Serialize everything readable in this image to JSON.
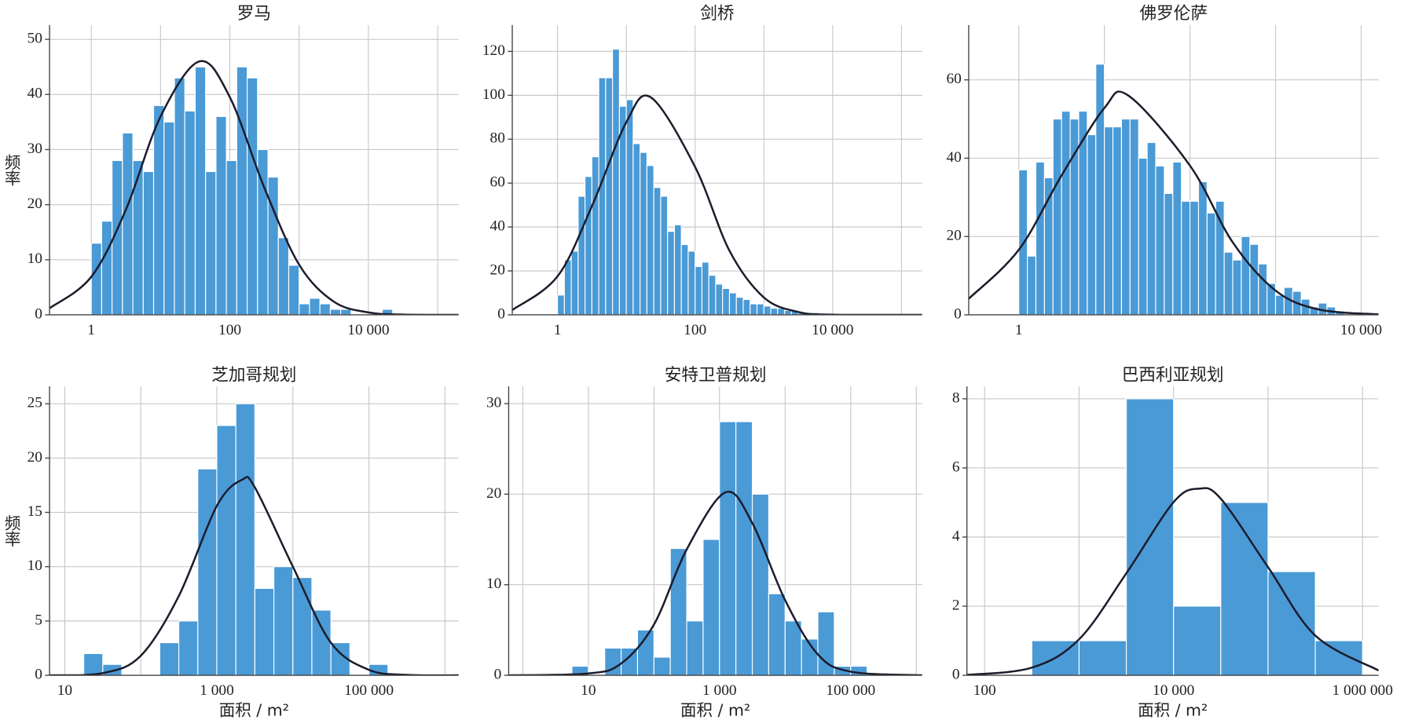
{
  "chart_data": [
    {
      "type": "histogram",
      "title": "罗马",
      "ylabel": "频率",
      "log_x": true,
      "grid": true,
      "color": "#4a9ad6",
      "xlim": [
        0.25,
        200000
      ],
      "xticks": [
        1,
        100,
        {
          "value": 10000,
          "label": "10 000"
        }
      ],
      "xminor": [
        10,
        1000,
        100000
      ],
      "ylim": [
        0,
        52.6
      ],
      "yticks": [
        0,
        10,
        20,
        30,
        40,
        50
      ],
      "bins": [
        1,
        1.413,
        1.995,
        2.818,
        3.981,
        5.623,
        7.943,
        11.22,
        15.85,
        22.39,
        31.62,
        44.67,
        63.1,
        89.13,
        125.9,
        177.8,
        251.2,
        354.8,
        501.2,
        707.9,
        1000,
        1413,
        1995,
        2818,
        3981,
        5623,
        7943,
        11220,
        15850,
        22390
      ],
      "values": [
        13,
        17,
        28,
        33,
        28,
        26,
        38,
        35,
        43,
        37,
        45,
        26,
        36,
        28,
        45,
        43,
        30,
        25,
        14,
        9,
        2,
        3,
        2,
        1,
        1,
        0,
        0,
        0,
        1
      ],
      "curve": {
        "color": "#1c1c2c",
        "x": [
          0.25,
          1,
          3.162,
          10,
          36.31,
          100,
          316.2,
          1000,
          3162,
          10000,
          31620,
          200000
        ],
        "values": [
          1.2,
          6.9,
          19.1,
          36.0,
          46,
          39.5,
          23.0,
          9.1,
          2.4,
          0.44,
          0.05,
          0
        ]
      }
    },
    {
      "type": "histogram",
      "title": "剑桥",
      "log_x": true,
      "grid": true,
      "color": "#4a9ad6",
      "xlim": [
        0.22,
        200000
      ],
      "xticks": [
        1,
        100,
        {
          "value": 10000,
          "label": "10 000"
        }
      ],
      "xminor": [
        10,
        1000,
        100000
      ],
      "ylim": [
        0,
        132
      ],
      "yticks": [
        0,
        20,
        40,
        60,
        80,
        100,
        120
      ],
      "bins": [
        1,
        1.259,
        1.585,
        1.995,
        2.512,
        3.162,
        3.981,
        5.012,
        6.31,
        7.943,
        10,
        12.59,
        15.85,
        19.95,
        25.12,
        31.62,
        39.81,
        50.12,
        63.1,
        79.43,
        100,
        125.9,
        158.5,
        199.5,
        251.2,
        316.2,
        398.1,
        501.2,
        631.0,
        794.3,
        1000,
        1259,
        1585,
        1995,
        2512,
        3162,
        3981,
        5012,
        6310
      ],
      "values": [
        9,
        25,
        29,
        54,
        63,
        72,
        108,
        108,
        121,
        95,
        98,
        78,
        74,
        68,
        58,
        54,
        38,
        41,
        32,
        29,
        22,
        24,
        18,
        14,
        12,
        10,
        8,
        7,
        5,
        5,
        4,
        3,
        3,
        2,
        2,
        1,
        1,
        1
      ],
      "curve": {
        "color": "#1c1c2c",
        "x": [
          0.22,
          1,
          3.162,
          10,
          22.91,
          100,
          316.2,
          1000,
          3162,
          10000,
          200000
        ],
        "values": [
          2.2,
          17.5,
          49.5,
          87.7,
          99,
          67.4,
          29.2,
          7.9,
          1.3,
          0.1,
          0
        ]
      }
    },
    {
      "type": "histogram",
      "title": "佛罗伦萨",
      "log_x": true,
      "grid": true,
      "color": "#4a9ad6",
      "xlim": [
        0.26,
        16000
      ],
      "xticks": [
        1,
        {
          "value": 10000,
          "label": "10 000"
        }
      ],
      "xminor": [
        10,
        100,
        1000
      ],
      "ylim": [
        0,
        74
      ],
      "yticks": [
        0,
        20,
        40,
        60
      ],
      "bins": [
        1,
        1.259,
        1.585,
        1.995,
        2.512,
        3.162,
        3.981,
        5.012,
        6.31,
        7.943,
        10,
        12.59,
        15.85,
        19.95,
        25.12,
        31.62,
        39.81,
        50.12,
        63.1,
        79.43,
        100,
        125.9,
        158.5,
        199.5,
        251.2,
        316.2,
        398.1,
        501.2,
        631.0,
        794.3,
        1000,
        1259,
        1585,
        1995,
        2512,
        3162,
        3981,
        5012,
        6310
      ],
      "values": [
        37,
        15,
        39,
        35,
        50,
        52,
        50,
        52,
        46,
        64,
        48,
        48,
        50,
        50,
        40,
        44,
        38,
        31,
        39,
        29,
        29,
        34,
        26,
        29,
        16,
        14,
        20,
        18,
        13,
        8,
        5,
        7,
        6,
        4,
        2,
        3,
        2,
        1
      ],
      "curve": {
        "color": "#1c1c2c",
        "x": [
          0.26,
          1,
          3.162,
          10,
          19.05,
          100,
          316.2,
          1000,
          3162,
          16000
        ],
        "values": [
          4.1,
          16.6,
          35.6,
          52.8,
          56,
          38.1,
          18.5,
          6.2,
          1.4,
          0.1
        ]
      }
    },
    {
      "type": "histogram",
      "title": "芝加哥规划",
      "ylabel": "频率",
      "xlabel": "面积 / m²",
      "log_x": true,
      "grid": true,
      "color": "#4a9ad6",
      "xlim": [
        6.31,
        1510000
      ],
      "xticks": [
        10,
        {
          "value": 1000,
          "label": "1 000"
        },
        {
          "value": 100000,
          "label": "100 000"
        }
      ],
      "xminor": [
        100,
        10000,
        1000000
      ],
      "ylim": [
        0,
        26.6
      ],
      "yticks": [
        0,
        5,
        10,
        15,
        20,
        25
      ],
      "bins": [
        17.78,
        31.62,
        56.23,
        100,
        177.8,
        316.2,
        562.3,
        1000,
        1778,
        3162,
        5623,
        10000,
        17780,
        31620,
        56230,
        100000,
        177800
      ],
      "values": [
        2,
        1,
        0,
        0,
        3,
        5,
        19,
        23,
        25,
        8,
        10,
        9,
        6,
        3,
        0,
        1
      ],
      "curve": {
        "color": "#1c1c2c",
        "x": [
          6.31,
          31.62,
          100,
          316.2,
          1000,
          2138,
          3162,
          10000,
          31620,
          100000,
          316200,
          1510000
        ],
        "values": [
          0,
          0.2,
          1.8,
          7.3,
          15.6,
          18,
          17.3,
          10.0,
          3.0,
          0.5,
          0.04,
          0
        ]
      }
    },
    {
      "type": "histogram",
      "title": "安特卫普规划",
      "xlabel": "面积 / m²",
      "log_x": true,
      "grid": true,
      "color": "#4a9ad6",
      "xlim": [
        0.61,
        1230000
      ],
      "xticks": [
        10,
        {
          "value": 1000,
          "label": "1 000"
        },
        {
          "value": 100000,
          "label": "100 000"
        }
      ],
      "xminor": [
        1,
        100,
        10000,
        1000000
      ],
      "ylim": [
        0,
        31.9
      ],
      "yticks": [
        0,
        10,
        20,
        30
      ],
      "bins": [
        5.623,
        10,
        17.78,
        31.62,
        56.23,
        100,
        177.8,
        316.2,
        562.3,
        1000,
        1778,
        3162,
        5623,
        10000,
        17780,
        31620,
        56230,
        100000,
        177800
      ],
      "values": [
        1,
        0,
        3,
        3,
        5,
        2,
        14,
        6,
        15,
        28,
        28,
        20,
        9,
        6,
        4,
        7,
        1,
        1
      ],
      "curve": {
        "color": "#1c1c2c",
        "x": [
          0.61,
          10,
          31.62,
          100,
          316.2,
          1230,
          3162,
          10000,
          31620,
          100000,
          1230000
        ],
        "values": [
          0,
          0.2,
          1.3,
          5.6,
          13.9,
          20.2,
          16.8,
          8.3,
          2.3,
          0.4,
          0
        ]
      }
    },
    {
      "type": "histogram",
      "title": "巴西利亚规划",
      "xlabel": "面积 / m²",
      "log_x": true,
      "grid": true,
      "color": "#4a9ad6",
      "xlim": [
        65,
        1480000
      ],
      "xticks": [
        100,
        {
          "value": 10000,
          "label": "10 000"
        },
        {
          "value": 1000000,
          "label": "1 000 000"
        }
      ],
      "xminor": [
        1000,
        100000
      ],
      "ylim": [
        0,
        8.36
      ],
      "yticks": [
        0,
        2,
        4,
        6,
        8
      ],
      "bins": [
        316.2,
        1000,
        3162,
        10000,
        31620,
        100000,
        316200,
        1000000
      ],
      "values": [
        1,
        1,
        8,
        2,
        5,
        3,
        1
      ],
      "curve": {
        "color": "#1c1c2c",
        "x": [
          65,
          316.2,
          1000,
          3162,
          10000,
          18620,
          31620,
          100000,
          316200,
          1480000
        ],
        "values": [
          0.01,
          0.22,
          1.04,
          2.95,
          5.01,
          5.4,
          5.11,
          3.13,
          1.15,
          0.14
        ]
      }
    }
  ]
}
